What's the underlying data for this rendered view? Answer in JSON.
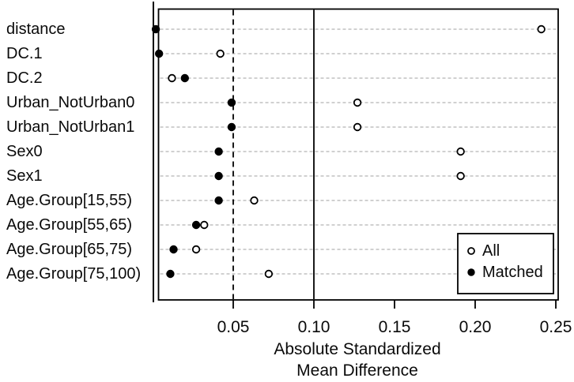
{
  "chart_data": {
    "type": "scatter",
    "variant": "dot-plot-covariate-balance",
    "title": "",
    "xlabel_line1": "Absolute Standardized",
    "xlabel_line2": "Mean Difference",
    "categories": [
      "distance",
      "DC.1",
      "DC.2",
      "Urban_NotUrban0",
      "Urban_NotUrban1",
      "Sex0",
      "Sex1",
      "Age.Group[15,55)",
      "Age.Group[55,65)",
      "Age.Group[65,75)",
      "Age.Group[75,100)"
    ],
    "series": [
      {
        "name": "All",
        "marker": "open-circle",
        "values": [
          0.241,
          0.042,
          0.012,
          0.127,
          0.127,
          0.191,
          0.191,
          0.063,
          0.032,
          0.027,
          0.072
        ]
      },
      {
        "name": "Matched",
        "marker": "filled-circle",
        "values": [
          0.002,
          0.004,
          0.02,
          0.049,
          0.049,
          0.041,
          0.041,
          0.041,
          0.027,
          0.013,
          0.011
        ]
      }
    ],
    "x_ticks": [
      0.05,
      0.1,
      0.15,
      0.2,
      0.25
    ],
    "x_tick_labels": [
      "0.05",
      "0.10",
      "0.15",
      "0.20",
      "0.25"
    ],
    "xlim": [
      0,
      0.253
    ],
    "reference_lines": [
      {
        "x": 0.0,
        "style": "solid",
        "note": "axis line at zero"
      },
      {
        "x": 0.05,
        "style": "dashed",
        "note": "balance threshold"
      },
      {
        "x": 0.1,
        "style": "solid",
        "note": "balance threshold"
      }
    ],
    "grid": "horizontal-dashed",
    "legend": {
      "position": "bottom-right",
      "entries": [
        {
          "label": "All",
          "marker": "open-circle"
        },
        {
          "label": "Matched",
          "marker": "filled-circle"
        }
      ]
    },
    "colors": {
      "foreground": "#000000",
      "grid": "#b3b3b3",
      "background": "#ffffff"
    }
  }
}
